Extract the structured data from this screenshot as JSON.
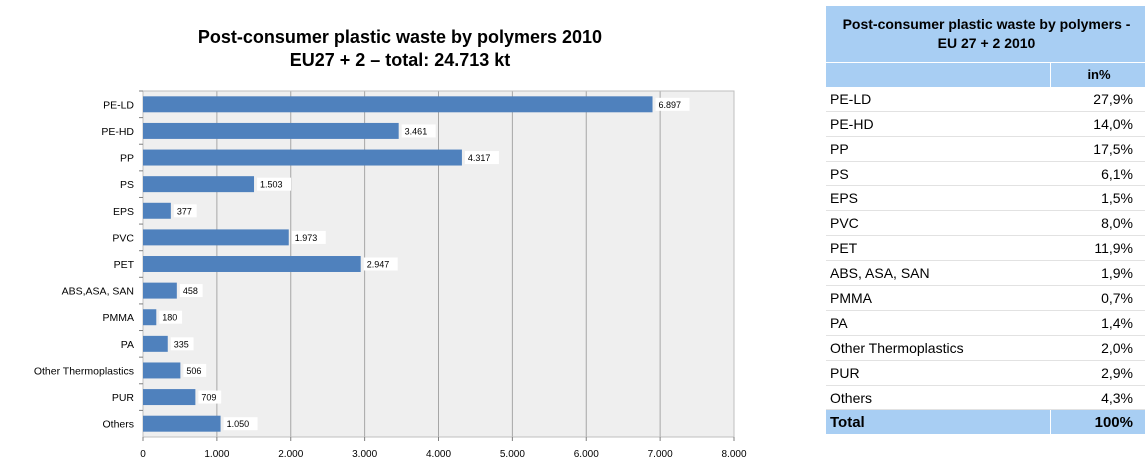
{
  "chart_data": {
    "type": "bar",
    "orientation": "horizontal",
    "title_lines": [
      "Post-consumer plastic waste by polymers 2010",
      "EU27 + 2 – total: 24.713 kt"
    ],
    "categories": [
      "PE-LD",
      "PE-HD",
      "PP",
      "PS",
      "EPS",
      "PVC",
      "PET",
      "ABS,ASA, SAN",
      "PMMA",
      "PA",
      "Other Thermoplastics",
      "PUR",
      "Others"
    ],
    "values": [
      6897,
      3461,
      4317,
      1503,
      377,
      1973,
      2947,
      458,
      180,
      335,
      506,
      709,
      1050
    ],
    "value_labels": [
      "6.897",
      "3.461",
      "4.317",
      "1.503",
      "377",
      "1.973",
      "2.947",
      "458",
      "180",
      "335",
      "506",
      "709",
      "1.050"
    ],
    "xlim": [
      0,
      8000
    ],
    "x_ticks": [
      0,
      1000,
      2000,
      3000,
      4000,
      5000,
      6000,
      7000,
      8000
    ],
    "x_tick_labels": [
      "0",
      "1.000",
      "2.000",
      "3.000",
      "4.000",
      "5.000",
      "6.000",
      "7.000",
      "8.000"
    ],
    "grid": true,
    "colors": {
      "bar": "#4f81bd",
      "plot_bg": "#efefef",
      "grid": "#a6a6a6"
    }
  },
  "table": {
    "title": "Post-consumer plastic waste by polymers - EU 27 + 2  2010",
    "unit_header": "in%",
    "rows": [
      {
        "label": "PE-LD",
        "value": "27,9%"
      },
      {
        "label": "PE-HD",
        "value": "14,0%"
      },
      {
        "label": "PP",
        "value": "17,5%"
      },
      {
        "label": "PS",
        "value": "6,1%"
      },
      {
        "label": "EPS",
        "value": "1,5%"
      },
      {
        "label": "PVC",
        "value": "8,0%"
      },
      {
        "label": "PET",
        "value": "11,9%"
      },
      {
        "label": "ABS, ASA, SAN",
        "value": "1,9%"
      },
      {
        "label": "PMMA",
        "value": "0,7%"
      },
      {
        "label": "PA",
        "value": "1,4%"
      },
      {
        "label": "Other Thermoplastics",
        "value": "2,0%"
      },
      {
        "label": "PUR",
        "value": "2,9%"
      },
      {
        "label": "Others",
        "value": "4,3%"
      }
    ],
    "total_label": "Total",
    "total_value": "100%",
    "header_color": "#a8cef3"
  }
}
